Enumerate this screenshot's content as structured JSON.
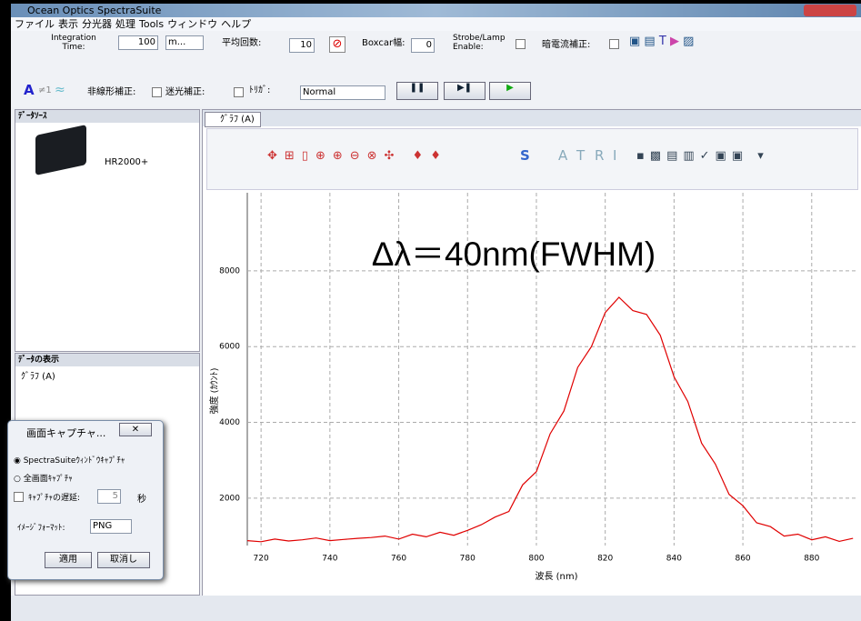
{
  "window": {
    "title": "Ocean Optics SpectraSuite"
  },
  "menu": [
    "ファイル",
    "表示",
    "分光器",
    "処理",
    "Tools",
    "ウィンドウ",
    "ヘルプ"
  ],
  "toolbar": {
    "integration_time_label": "Integration Time:",
    "integration_time_value": "100",
    "integration_time_unit": "m...",
    "averaging_label": "平均回数:",
    "averaging_value": "10",
    "boxcar_label": "Boxcar幅:",
    "boxcar_value": "0",
    "strobe_label": "Strobe/Lamp Enable:",
    "dark_label": "暗電流補正:",
    "a_label": "A",
    "ne1_label": "≠1",
    "nonlinear_label": "非線形補正:",
    "stray_label": "迷光補正:",
    "trigger_label": "ﾄﾘｶﾞ:",
    "trigger_value": "Normal"
  },
  "data_sources_panel": {
    "title": "ﾃﾞｰﾀｿｰｽ",
    "device": "HR2000+"
  },
  "data_views_panel": {
    "title": "ﾃﾞｰﾀの表示",
    "item": "ｸﾞﾗﾌ (A)"
  },
  "tab": {
    "label": "ｸﾞﾗﾌ (A)"
  },
  "graph_toolbar": {
    "letters": [
      "S",
      "A",
      "T",
      "R",
      "I"
    ]
  },
  "capture_dialog": {
    "title": "画面キャプチャ...",
    "option_window": "SpectraSuiteｳｨﾝﾄﾞｳｷｬﾌﾟﾁｬ",
    "option_full": "全画面ｷｬﾌﾟﾁｬ",
    "delay_label": "ｷｬﾌﾟﾁｬの遅延:",
    "delay_value": "5",
    "delay_unit": "秒",
    "format_label": "ｲﾒｰｼﾞﾌｫｰﾏｯﾄ:",
    "format_value": "PNG",
    "apply": "適用",
    "cancel": "取消し"
  },
  "chart_data": {
    "type": "line",
    "annotation": "Δλ＝40nm(FWHM)",
    "x_label": "波長 (nm)",
    "y_label": "強度 (ｶｳﾝﾄ)",
    "x": [
      716,
      720,
      724,
      728,
      732,
      736,
      740,
      744,
      748,
      752,
      756,
      760,
      764,
      768,
      772,
      776,
      780,
      784,
      788,
      792,
      796,
      800,
      804,
      808,
      812,
      816,
      820,
      824,
      828,
      832,
      836,
      840,
      844,
      848,
      852,
      856,
      860,
      864,
      868,
      872,
      876,
      880,
      884,
      888,
      892
    ],
    "values": [
      880,
      850,
      920,
      870,
      900,
      950,
      880,
      910,
      940,
      960,
      1000,
      920,
      1050,
      980,
      1100,
      1020,
      1150,
      1300,
      1500,
      1650,
      2350,
      2700,
      3700,
      4300,
      5450,
      6000,
      6900,
      7300,
      6950,
      6850,
      6300,
      5200,
      4550,
      3450,
      2900,
      2100,
      1800,
      1350,
      1250,
      1000,
      1050,
      900,
      980,
      860,
      940
    ],
    "color": "#e00000",
    "xlim": [
      716,
      893
    ],
    "ylim": [
      750,
      10060
    ],
    "xticks": [
      720,
      740,
      760,
      780,
      800,
      820,
      840,
      860,
      880
    ],
    "yticks": [
      2000,
      4000,
      6000,
      8000
    ],
    "grid": true
  }
}
